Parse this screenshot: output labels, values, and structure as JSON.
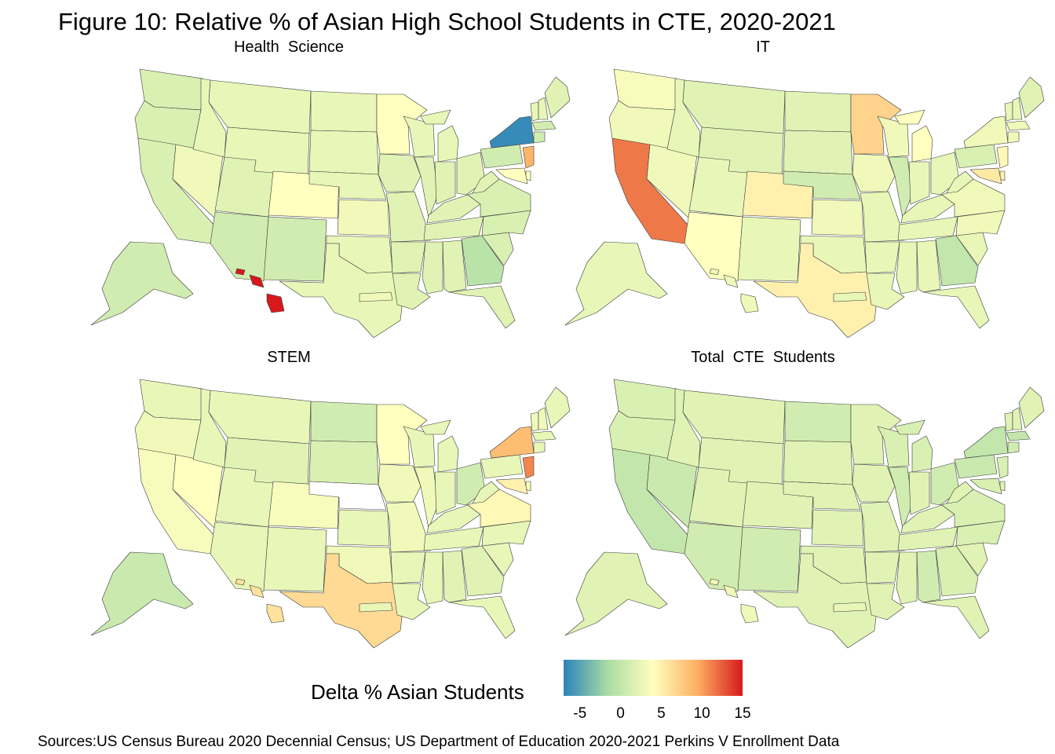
{
  "title": "Figure 10: Relative % of Asian High School Students in CTE, 2020-2021",
  "panels": [
    {
      "title": "Health  Science",
      "state_values": {
        "WA": 1.5,
        "OR": 1.5,
        "CA": 1.5,
        "NV": 3.0,
        "ID": 2.5,
        "MT": 2.5,
        "WY": 2.5,
        "UT": 2.0,
        "AZ": 1.0,
        "CO": 4.0,
        "NM": 1.0,
        "ND": 2.5,
        "SD": 2.5,
        "NE": 2.5,
        "KS": 3.0,
        "OK": 2.5,
        "TX": 2.5,
        "MN": 4.0,
        "IA": 2.0,
        "MO": 2.0,
        "AR": 2.0,
        "LA": 2.0,
        "WI": 2.5,
        "IL": 2.0,
        "MI": 2.5,
        "IN": 2.0,
        "OH": 2.0,
        "KY": 2.0,
        "TN": 2.0,
        "MS": 2.0,
        "AL": 2.0,
        "GA": -0.5,
        "FL": 2.0,
        "SC": 1.5,
        "NC": 1.5,
        "VA": 1.5,
        "WV": 2.0,
        "PA": 1.0,
        "NY": -6.5,
        "NJ": 9.0,
        "DE": 4.0,
        "MD": 4.0,
        "VT": 2.5,
        "NH": 2.5,
        "ME": 2.0,
        "MA": 1.0,
        "CT": 1.0,
        "AK": 1.0,
        "HI": 15.0,
        "PR": 3.0
      },
      "colors": {}
    },
    {
      "title": "IT",
      "state_values": {
        "WA": 3.5,
        "OR": 3.0,
        "CA": 11.5,
        "NV": 3.0,
        "ID": 2.5,
        "MT": 2.0,
        "WY": 2.0,
        "UT": 2.5,
        "AZ": 4.0,
        "CO": 5.0,
        "NM": 2.5,
        "ND": 2.0,
        "SD": 2.0,
        "NE": 1.0,
        "KS": 3.0,
        "OK": 2.5,
        "TX": 5.0,
        "MN": 7.0,
        "IA": 3.0,
        "MO": 2.5,
        "AR": 2.5,
        "LA": 2.5,
        "WI": 3.0,
        "IL": 1.0,
        "MI": 4.0,
        "IN": 2.5,
        "OH": 2.5,
        "KY": 2.5,
        "TN": 2.5,
        "MS": 2.5,
        "AL": 2.5,
        "GA": 0.0,
        "FL": 2.5,
        "SC": 2.5,
        "NC": 3.0,
        "VA": 3.0,
        "WV": 2.5,
        "PA": 1.5,
        "NY": 3.0,
        "NJ": 4.5,
        "DE": 5.0,
        "MD": 5.5,
        "VT": 2.5,
        "NH": 2.5,
        "ME": 2.0,
        "MA": 3.0,
        "CT": 3.0,
        "AK": 2.5,
        "HI": 3.0,
        "PR": 2.5
      }
    },
    {
      "title": "STEM",
      "state_values": {
        "WA": 2.5,
        "OR": 3.0,
        "CA": 3.5,
        "NV": 4.0,
        "ID": 2.5,
        "MT": 2.5,
        "WY": 2.0,
        "UT": 2.5,
        "AZ": 2.5,
        "CO": 3.5,
        "NM": 2.5,
        "ND": 1.0,
        "SD": 1.5,
        "NE": null,
        "KS": 2.5,
        "OK": 3.0,
        "TX": 6.5,
        "MN": 4.0,
        "IA": 3.0,
        "MO": 3.0,
        "AR": 2.5,
        "LA": 2.5,
        "WI": 2.5,
        "IL": 3.0,
        "MI": 2.5,
        "IN": 2.5,
        "OH": 1.0,
        "KY": 2.5,
        "TN": 2.5,
        "MS": 2.5,
        "AL": 2.0,
        "GA": 2.0,
        "FL": 2.5,
        "SC": 2.5,
        "NC": 2.5,
        "VA": 4.5,
        "WV": 2.5,
        "PA": 2.5,
        "NY": 8.5,
        "NJ": 11.0,
        "DE": 3.5,
        "MD": 5.0,
        "VT": 3.0,
        "NH": 3.0,
        "ME": 2.5,
        "MA": 2.5,
        "CT": 2.5,
        "AK": 0.5,
        "HI": 6.0,
        "PR": 2.5
      }
    },
    {
      "title": "Total  CTE  Students",
      "state_values": {
        "WA": 1.5,
        "OR": 1.5,
        "CA": 0.0,
        "NV": 0.5,
        "ID": 2.0,
        "MT": 2.0,
        "WY": 2.0,
        "UT": 2.0,
        "AZ": 1.0,
        "CO": 2.0,
        "NM": 1.0,
        "ND": 1.0,
        "SD": 2.0,
        "NE": 2.0,
        "KS": 2.0,
        "OK": 2.0,
        "TX": 2.0,
        "MN": 2.0,
        "IA": 2.0,
        "MO": 2.0,
        "AR": 2.0,
        "LA": 2.0,
        "WI": 1.5,
        "IL": 1.0,
        "MI": 1.5,
        "IN": 2.0,
        "OH": 1.0,
        "KY": 2.0,
        "TN": 2.0,
        "MS": 2.0,
        "AL": 1.0,
        "GA": 1.5,
        "FL": 2.0,
        "SC": 2.0,
        "NC": 1.5,
        "VA": 1.5,
        "WV": 2.0,
        "PA": 0.5,
        "NY": 0.0,
        "NJ": 1.5,
        "DE": 2.0,
        "MD": 1.5,
        "VT": 2.0,
        "NH": 2.0,
        "ME": 2.0,
        "MA": 0.0,
        "CT": 1.0,
        "AK": 2.0,
        "HI": 3.0,
        "PR": 2.5
      }
    }
  ],
  "legend": {
    "title": "Delta % Asian Students",
    "ticks": [
      "-5",
      "0",
      "5",
      "10",
      "15"
    ],
    "tick_values": [
      -5,
      0,
      5,
      10,
      15
    ],
    "range": [
      -7,
      15
    ],
    "scale": "RdYlBu diverging (Spectral)",
    "stops": [
      "#2b83ba",
      "#abdda4",
      "#ffffbf",
      "#fdae61",
      "#d7191c"
    ]
  },
  "source": "Sources:US Census Bureau 2020 Decennial Census; US Department of Education 2020-2021 Perkins V Enrollment Data",
  "colors": {
    "missing": "#ffffff",
    "border": "#3a3a3a"
  }
}
